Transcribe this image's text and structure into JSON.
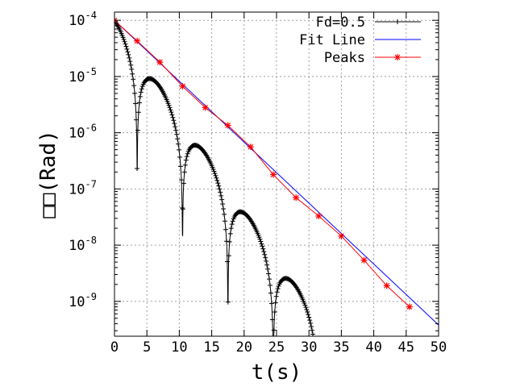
{
  "chart_data": {
    "type": "line",
    "title": "",
    "xlabel": "t(s)",
    "ylabel": "□□(Rad)",
    "xlim": [
      0,
      50
    ],
    "ylim": [
      2.4e-10,
      0.00014
    ],
    "yscale": "log",
    "grid": true,
    "legend_position": "top-right",
    "x_ticks": [
      "0",
      "5",
      "10",
      "15",
      "20",
      "25",
      "30",
      "35",
      "40",
      "45",
      "50"
    ],
    "y_ticks": [
      {
        "base": "10",
        "exp": "-4"
      },
      {
        "base": "10",
        "exp": "-5"
      },
      {
        "base": "10",
        "exp": "-6"
      },
      {
        "base": "10",
        "exp": "-7"
      },
      {
        "base": "10",
        "exp": "-8"
      },
      {
        "base": "10",
        "exp": "-9"
      }
    ],
    "series": [
      {
        "name": "Fd=0.5",
        "color": "#000000",
        "marker": "+",
        "model": "decaying_oscillation",
        "amplitude0": 0.0001,
        "decay_per_s": -0.3897,
        "period_s": 7.0
      },
      {
        "name": "Fit Line",
        "color": "#0000ff",
        "x": [
          0,
          50
        ],
        "y": [
          0.0001,
          3.8e-10
        ]
      },
      {
        "name": "Peaks",
        "color": "#ff0000",
        "marker": "*",
        "x": [
          0.0,
          3.5,
          7.0,
          10.5,
          14.0,
          17.5,
          21.0,
          24.5,
          28.0,
          31.5,
          35.0,
          38.5,
          42.0,
          45.5
        ],
        "y": [
          0.0001,
          4.3e-05,
          1.8e-05,
          6.7e-06,
          2.8e-06,
          1.35e-06,
          5.6e-07,
          1.8e-07,
          7e-08,
          3.3e-08,
          1.45e-08,
          5.4e-09,
          1.9e-09,
          8e-10
        ]
      }
    ]
  }
}
